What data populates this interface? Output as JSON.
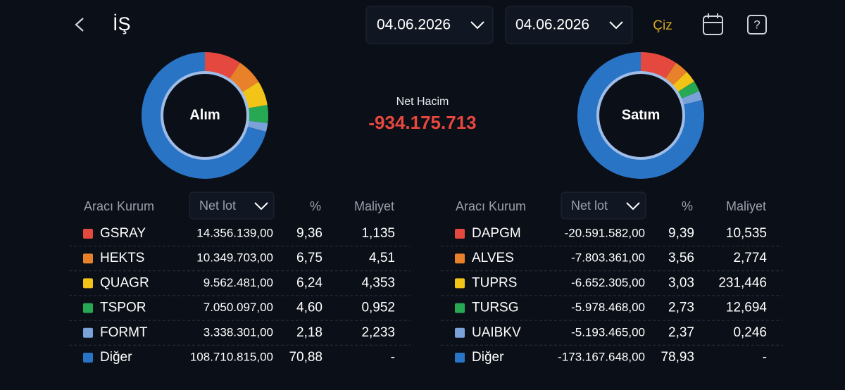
{
  "header": {
    "title": "İŞ",
    "date_from": "04.06.2026",
    "date_to": "04.06.2026",
    "draw_button": "Çiz"
  },
  "net_volume": {
    "label": "Net Hacim",
    "value": "-934.175.713"
  },
  "buy": {
    "donut_label": "Alım",
    "columns": [
      "Aracı Kurum",
      "Net lot",
      "%",
      "Maliyet"
    ],
    "rows": [
      {
        "name": "GSRAY",
        "color": "#e5483f",
        "net_lot": "14.356.139,00",
        "pct": {
          "value": 9.36,
          "label": "9,36"
        },
        "cost": "1,135"
      },
      {
        "name": "HEKTS",
        "color": "#e8812a",
        "net_lot": "10.349.703,00",
        "pct": {
          "value": 6.75,
          "label": "6,75"
        },
        "cost": "4,51"
      },
      {
        "name": "QUAGR",
        "color": "#f2c418",
        "net_lot": "9.562.481,00",
        "pct": {
          "value": 6.24,
          "label": "6,24"
        },
        "cost": "4,353"
      },
      {
        "name": "TSPOR",
        "color": "#27a853",
        "net_lot": "7.050.097,00",
        "pct": {
          "value": 4.6,
          "label": "4,60"
        },
        "cost": "0,952"
      },
      {
        "name": "FORMT",
        "color": "#7ba2d8",
        "net_lot": "3.338.301,00",
        "pct": {
          "value": 2.18,
          "label": "2,18"
        },
        "cost": "2,233"
      },
      {
        "name": "Diğer",
        "color": "#2a74c6",
        "net_lot": "108.710.815,00",
        "pct": {
          "value": 70.88,
          "label": "70,88"
        },
        "cost": "-"
      }
    ]
  },
  "sell": {
    "donut_label": "Satım",
    "columns": [
      "Aracı Kurum",
      "Net lot",
      "%",
      "Maliyet"
    ],
    "rows": [
      {
        "name": "DAPGM",
        "color": "#e5483f",
        "net_lot": "-20.591.582,00",
        "pct": {
          "value": 9.39,
          "label": "9,39"
        },
        "cost": "10,535"
      },
      {
        "name": "ALVES",
        "color": "#e8812a",
        "net_lot": "-7.803.361,00",
        "pct": {
          "value": 3.56,
          "label": "3,56"
        },
        "cost": "2,774"
      },
      {
        "name": "TUPRS",
        "color": "#f2c418",
        "net_lot": "-6.652.305,00",
        "pct": {
          "value": 3.03,
          "label": "3,03"
        },
        "cost": "231,446"
      },
      {
        "name": "TURSG",
        "color": "#27a853",
        "net_lot": "-5.978.468,00",
        "pct": {
          "value": 2.73,
          "label": "2,73"
        },
        "cost": "12,694"
      },
      {
        "name": "UAIBKV",
        "color": "#7ba2d8",
        "net_lot": "-5.193.465,00",
        "pct": {
          "value": 2.37,
          "label": "2,37"
        },
        "cost": "0,246"
      },
      {
        "name": "Diğer",
        "color": "#2a74c6",
        "net_lot": "-173.167.648,00",
        "pct": {
          "value": 78.93,
          "label": "78,93"
        },
        "cost": "-"
      }
    ]
  }
}
